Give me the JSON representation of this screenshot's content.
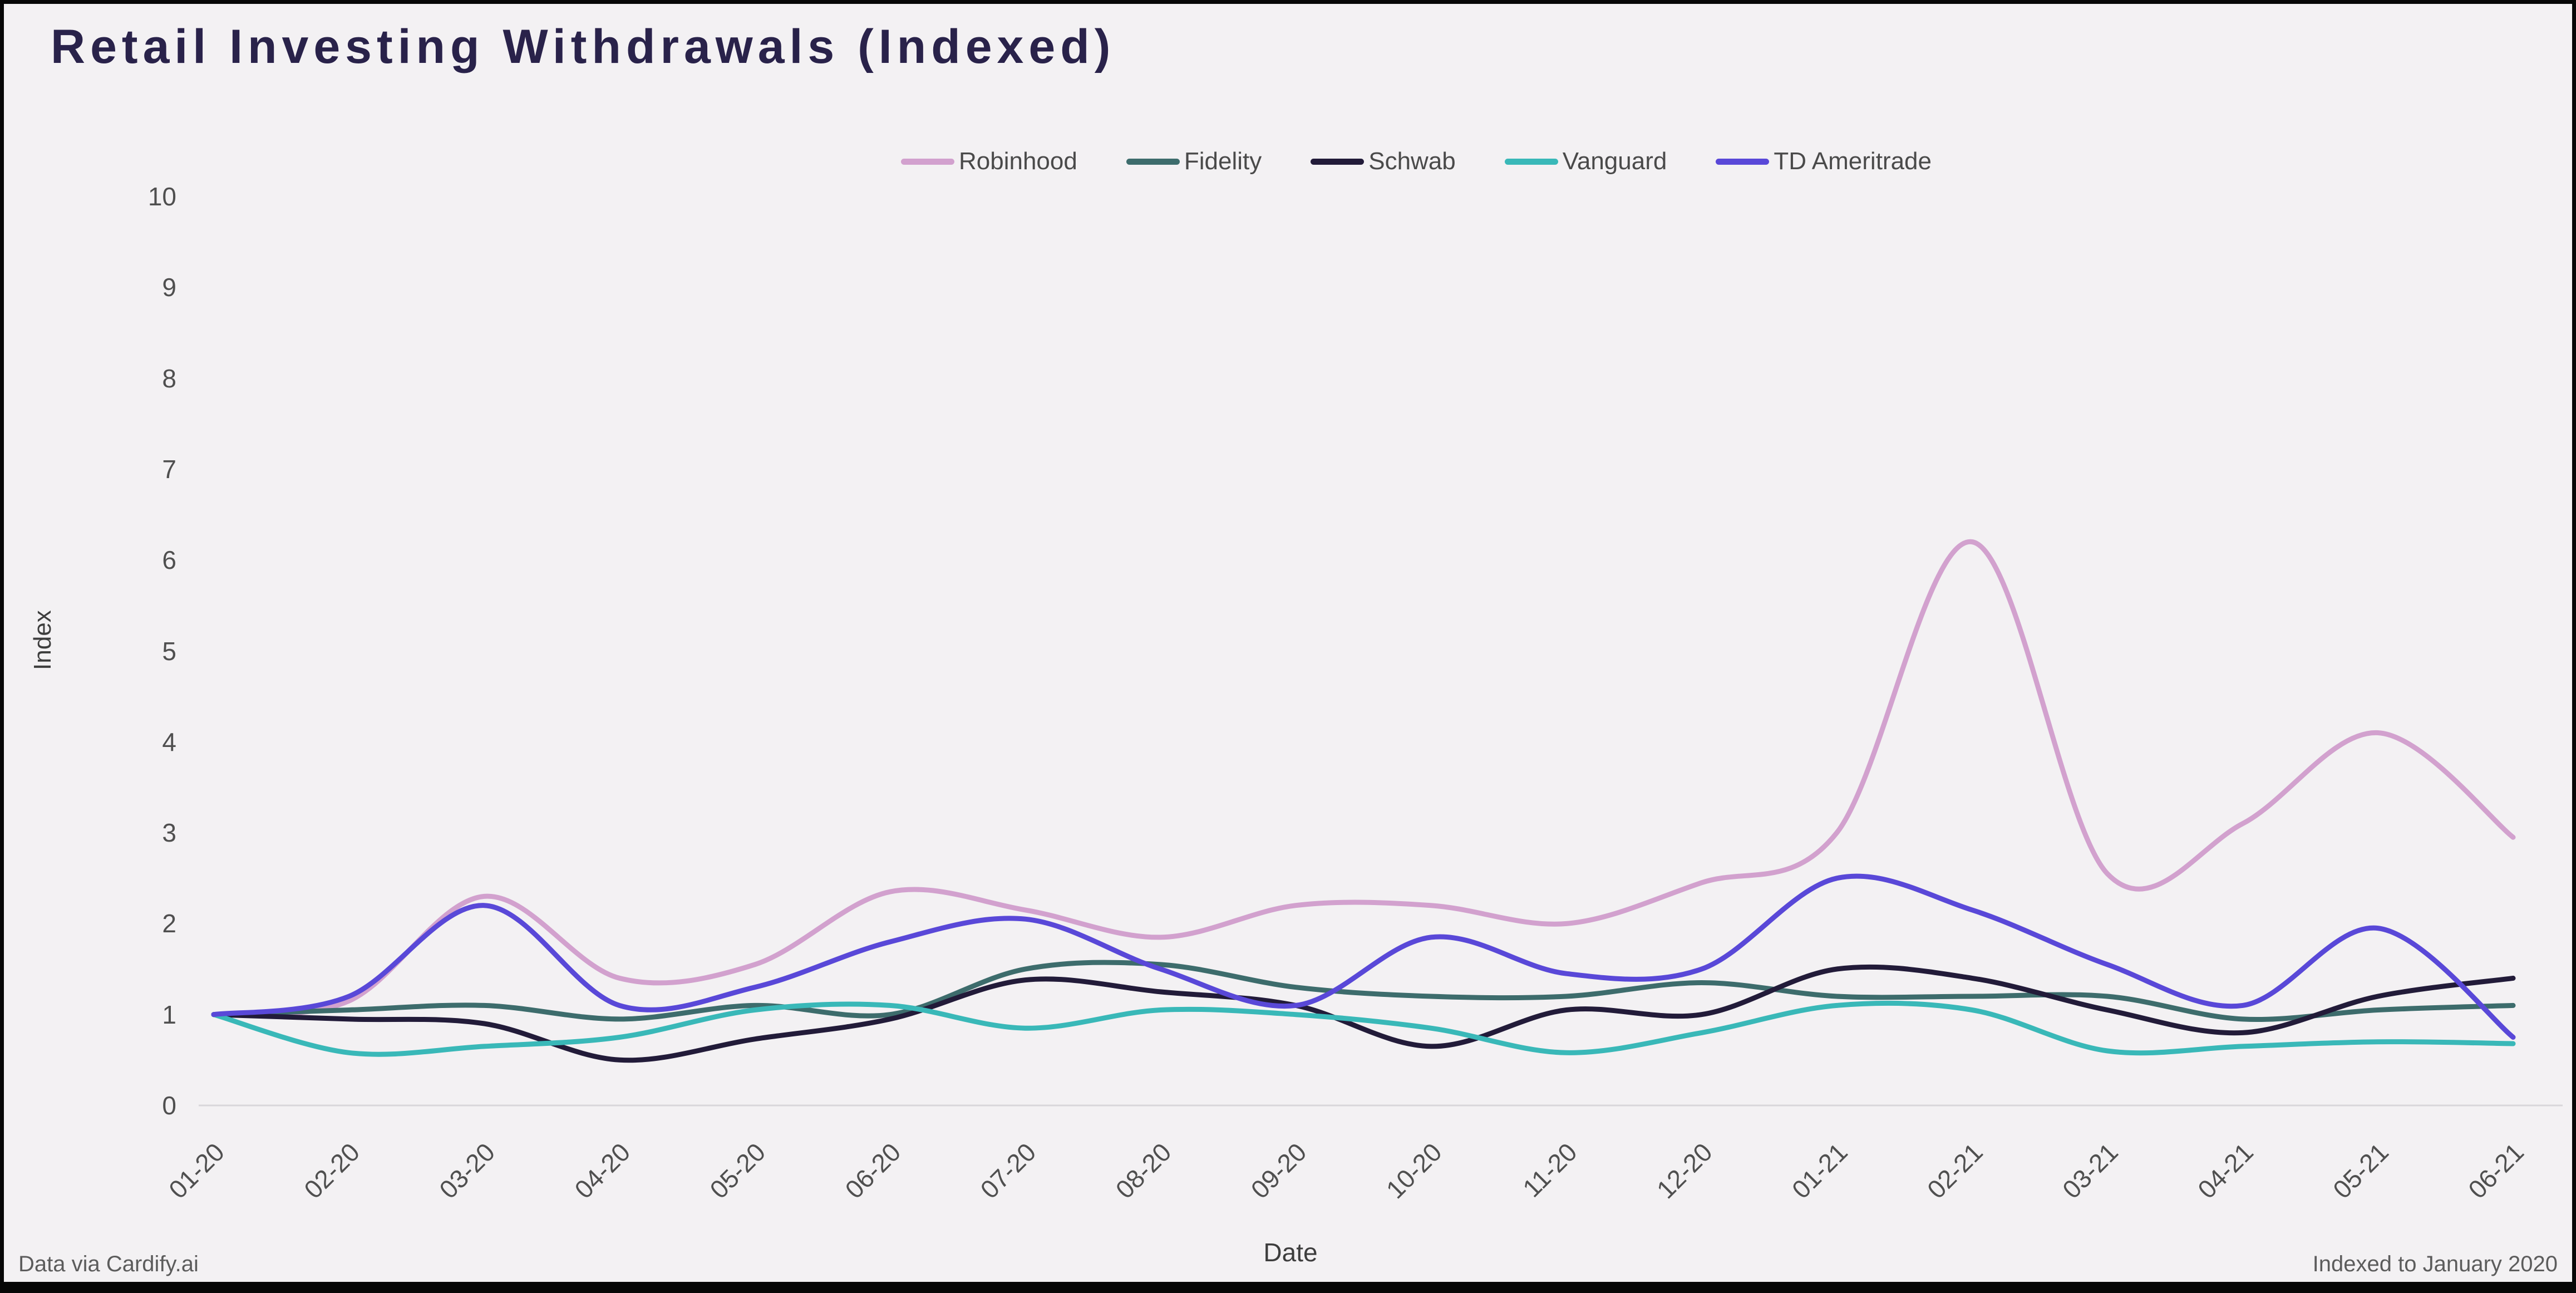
{
  "page": {
    "title": "Retail Investing Withdrawals (Indexed)",
    "footnote_left": "Data via Cardify.ai",
    "footnote_right": "Indexed to January 2020"
  },
  "colors": {
    "background": "#f3f1f3",
    "title_text": "#29224a",
    "axis_text": "#4f4f4f",
    "axis_line": "#d8d6da",
    "footer_text": "#5c5c5c",
    "frame": "#070707"
  },
  "chart_data": {
    "type": "line",
    "title": "Retail Investing Withdrawals (Indexed)",
    "xlabel": "Date",
    "ylabel": "Index",
    "ylim": [
      0,
      10
    ],
    "yticks": [
      0,
      1,
      2,
      3,
      4,
      5,
      6,
      7,
      8,
      9,
      10
    ],
    "grid": "none",
    "legend_position": "top",
    "categories": [
      "01-20",
      "02-20",
      "03-20",
      "04-20",
      "05-20",
      "06-20",
      "07-20",
      "08-20",
      "09-20",
      "10-20",
      "11-20",
      "12-20",
      "01-21",
      "02-21",
      "03-21",
      "04-21",
      "05-21",
      "06-21"
    ],
    "series": [
      {
        "name": "Robinhood",
        "color": "#d2a1ce",
        "values": [
          1.0,
          1.15,
          2.3,
          1.4,
          1.55,
          2.35,
          2.15,
          1.85,
          2.2,
          2.2,
          2.0,
          2.45,
          3.0,
          6.2,
          2.55,
          3.1,
          4.1,
          2.95
        ]
      },
      {
        "name": "Fidelity",
        "color": "#3d6c6c",
        "values": [
          1.0,
          1.05,
          1.1,
          0.95,
          1.1,
          1.0,
          1.5,
          1.55,
          1.3,
          1.2,
          1.2,
          1.35,
          1.2,
          1.2,
          1.2,
          0.95,
          1.05,
          1.1
        ]
      },
      {
        "name": "Schwab",
        "color": "#221b39",
        "values": [
          1.0,
          0.95,
          0.9,
          0.5,
          0.73,
          0.95,
          1.38,
          1.25,
          1.1,
          0.65,
          1.05,
          1.0,
          1.5,
          1.4,
          1.05,
          0.8,
          1.2,
          1.4
        ]
      },
      {
        "name": "Vanguard",
        "color": "#39b8b8",
        "values": [
          1.0,
          0.58,
          0.65,
          0.75,
          1.05,
          1.1,
          0.85,
          1.05,
          1.0,
          0.85,
          0.58,
          0.8,
          1.1,
          1.05,
          0.6,
          0.65,
          0.7,
          0.68
        ]
      },
      {
        "name": "TD Ameritrade",
        "color": "#5948d8",
        "values": [
          1.0,
          1.2,
          2.2,
          1.1,
          1.3,
          1.8,
          2.05,
          1.5,
          1.1,
          1.85,
          1.45,
          1.5,
          2.5,
          2.15,
          1.55,
          1.1,
          1.95,
          0.75
        ]
      }
    ]
  }
}
